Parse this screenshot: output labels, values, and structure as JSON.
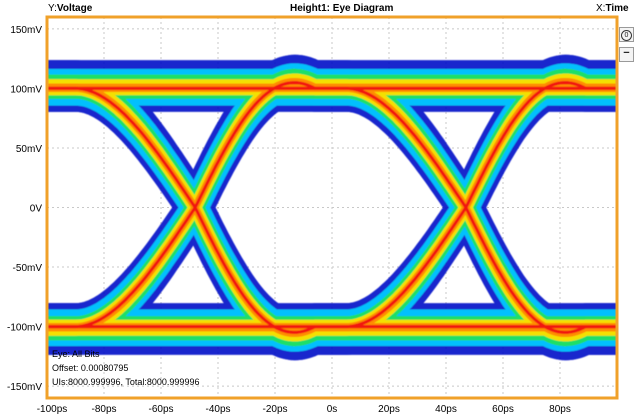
{
  "header": {
    "y_prefix": "Y:",
    "y_value": "Voltage",
    "title": "Height1: Eye Diagram",
    "x_prefix": "X:",
    "x_value": "Time"
  },
  "side_buttons": [
    {
      "name": "zoom-reset-button",
      "symbol": "0"
    },
    {
      "name": "zoom-out-button",
      "symbol": "−"
    }
  ],
  "info": {
    "line1": "Eye: All Bits",
    "line2": "Offset: 0.00080795",
    "line3": "UIs:8000.999996, Total:8000.999996"
  },
  "colors": {
    "frame": "#f0a12a",
    "grid": "#c8c8c8",
    "density_low": "#0010c8",
    "density_midlow": "#00c8ff",
    "density_mid": "#20e060",
    "density_midhigh": "#ffe000",
    "density_high": "#ff8800",
    "density_peak": "#f01010"
  },
  "chart_data": {
    "type": "eye-diagram",
    "title": "Height1: Eye Diagram",
    "xlabel": "Time",
    "ylabel": "Voltage",
    "x_unit": "ps",
    "y_unit": "mV",
    "xlim": [
      -100,
      100
    ],
    "ylim": [
      -160,
      160
    ],
    "x_ticks": [
      -100,
      -80,
      -60,
      -40,
      -20,
      0,
      20,
      40,
      60,
      80
    ],
    "x_tick_labels": [
      "-100ps",
      "-80ps",
      "-60ps",
      "-40ps",
      "-20ps",
      "0s",
      "20ps",
      "40ps",
      "60ps",
      "80ps"
    ],
    "y_ticks": [
      150,
      100,
      50,
      0,
      -50,
      -100,
      -150
    ],
    "y_tick_labels": [
      "150mV",
      "100mV",
      "50mV",
      "0V",
      "-50mV",
      "-100mV",
      "-150mV"
    ],
    "crossing_times": [
      -48,
      47
    ],
    "logic_levels": [
      100,
      -100
    ],
    "grid": true
  }
}
